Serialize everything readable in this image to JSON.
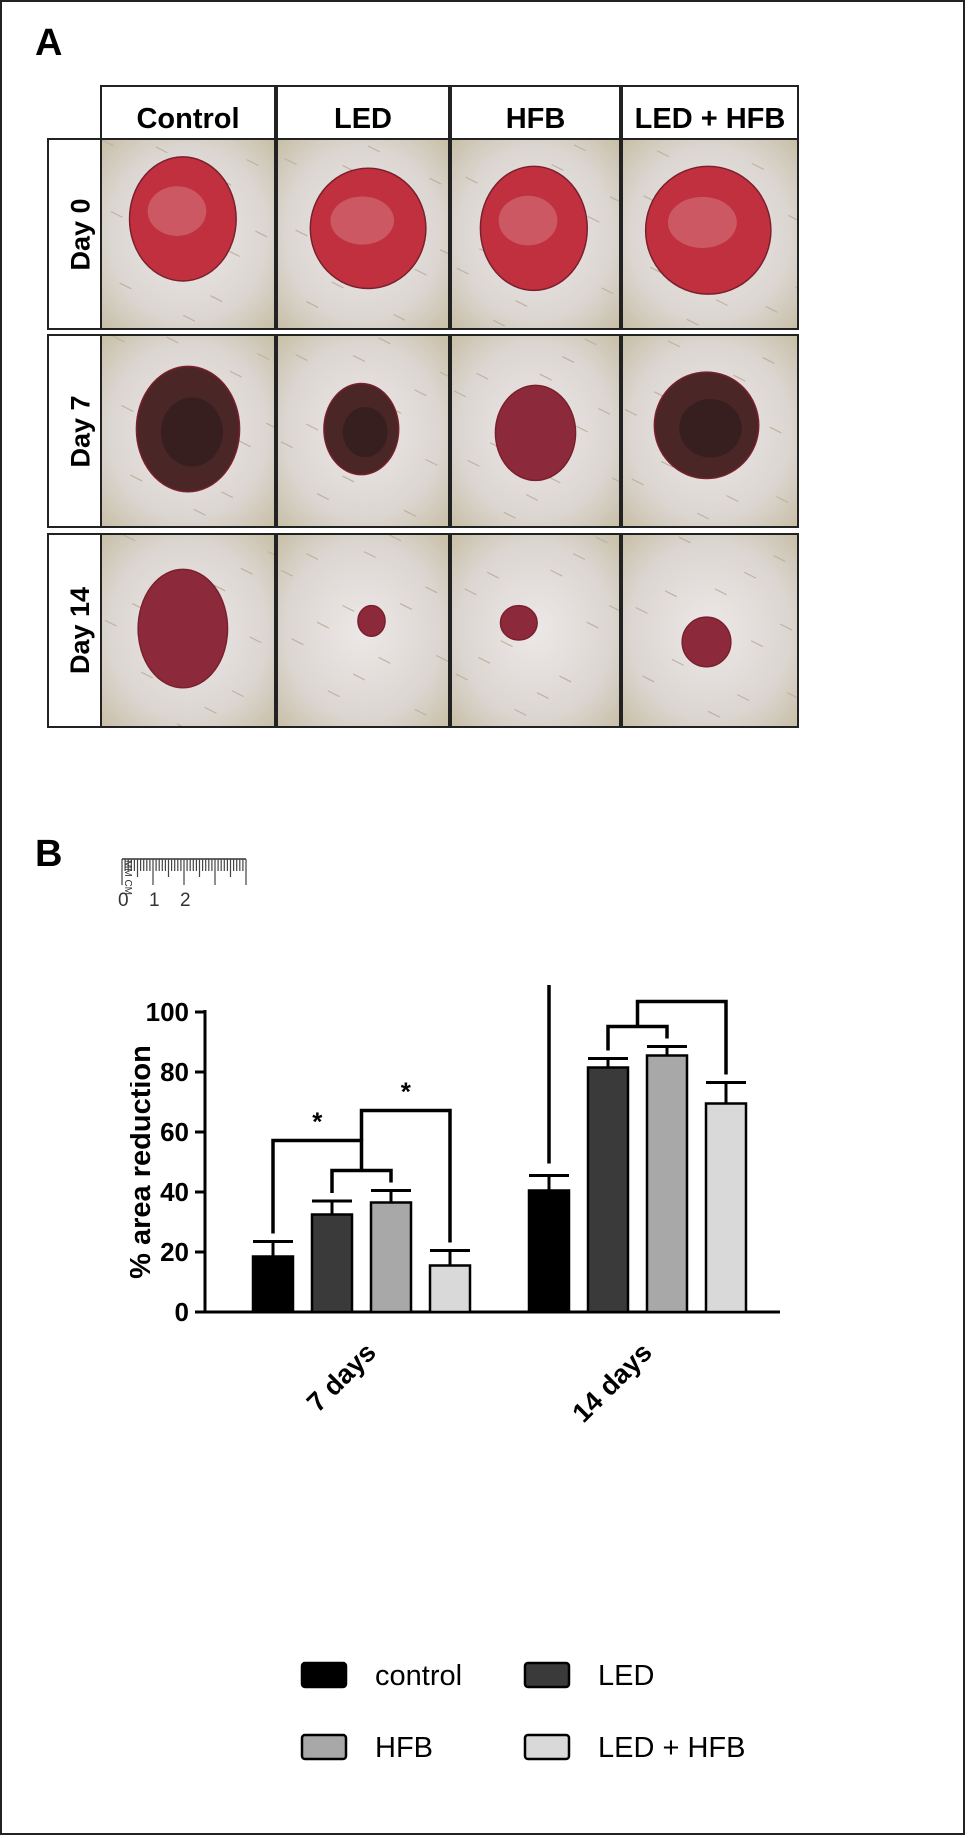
{
  "panel_a": {
    "letter": "A",
    "columns": [
      "Control",
      "LED",
      "HFB",
      "LED + HFB"
    ],
    "rows": [
      "Day 0",
      "Day 7",
      "Day 14"
    ],
    "ruler": {
      "units": "MM CM",
      "ticks": [
        "0",
        "1",
        "2"
      ]
    }
  },
  "panel_b": {
    "letter": "B"
  },
  "chart_data": {
    "type": "bar",
    "categories": [
      "7 days",
      "14 days"
    ],
    "series": [
      {
        "name": "control",
        "values": [
          18.5,
          40.5
        ],
        "errors": [
          5.0,
          5.0
        ],
        "color": "#000000"
      },
      {
        "name": "LED",
        "values": [
          32.5,
          81.5
        ],
        "errors": [
          4.5,
          3.0
        ],
        "color": "#3a3a3a"
      },
      {
        "name": "HFB",
        "values": [
          36.5,
          85.5
        ],
        "errors": [
          4.0,
          3.0
        ],
        "color": "#a8a8a8"
      },
      {
        "name": "LED + HFB",
        "values": [
          15.5,
          69.5
        ],
        "errors": [
          5.0,
          7.0
        ],
        "color": "#d9d9d9"
      }
    ],
    "ylabel": "% area reduction",
    "xlabel": "",
    "ylim": [
      0,
      100
    ],
    "yticks": [
      0,
      20,
      40,
      60,
      80,
      100
    ],
    "significance_marker": "*",
    "legend_position": "bottom",
    "grid": false
  }
}
